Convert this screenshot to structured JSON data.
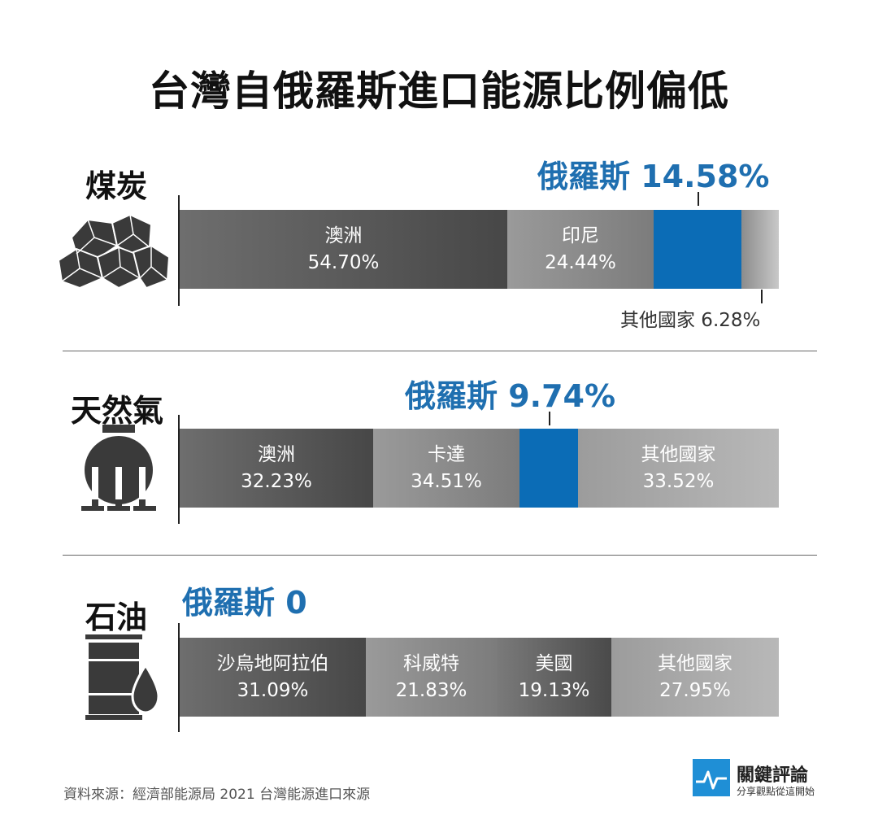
{
  "title": "台灣自俄羅斯進口能源比例偏低",
  "colors": {
    "russia": "#0b6cb6",
    "russia_text": "#1f6fb0",
    "dark_gray": "#585858",
    "mid_gray": "#8e8e8e",
    "light_gray": "#b2b2b2"
  },
  "source": "資料來源：經濟部能源局 2021 台灣能源進口來源",
  "logo": {
    "name": "關鍵評論",
    "tagline": "分享觀點從這開始"
  },
  "chart_data": [
    {
      "type": "bar",
      "category": "煤炭",
      "russia_label": "俄羅斯 14.58%",
      "segments": [
        {
          "name": "澳洲",
          "value": 54.7,
          "label": "54.70%",
          "style": "dark"
        },
        {
          "name": "印尼",
          "value": 24.44,
          "label": "24.44%",
          "style": "mid"
        },
        {
          "name": "俄羅斯",
          "value": 14.58,
          "label": "",
          "style": "russia"
        },
        {
          "name": "",
          "value": 6.28,
          "label": "",
          "style": "light"
        }
      ],
      "other_label": "其他國家 6.28%"
    },
    {
      "type": "bar",
      "category": "天然氣",
      "russia_label": "俄羅斯 9.74%",
      "segments": [
        {
          "name": "澳洲",
          "value": 32.23,
          "label": "32.23%",
          "style": "dark"
        },
        {
          "name": "卡達",
          "value": 34.51,
          "label": "34.51%",
          "style": "mid"
        },
        {
          "name": "俄羅斯",
          "value": 9.74,
          "label": "",
          "style": "russia"
        },
        {
          "name": "其他國家",
          "value": 33.52,
          "label": "33.52%",
          "style": "light"
        }
      ]
    },
    {
      "type": "bar",
      "category": "石油",
      "russia_label": "俄羅斯 0",
      "segments": [
        {
          "name": "沙烏地阿拉伯",
          "value": 31.09,
          "label": "31.09%",
          "style": "dark"
        },
        {
          "name": "科威特",
          "value": 21.83,
          "label": "21.83%",
          "style": "mid"
        },
        {
          "name": "美國",
          "value": 19.13,
          "label": "19.13%",
          "style": "dark"
        },
        {
          "name": "其他國家",
          "value": 27.95,
          "label": "27.95%",
          "style": "light"
        }
      ]
    }
  ]
}
